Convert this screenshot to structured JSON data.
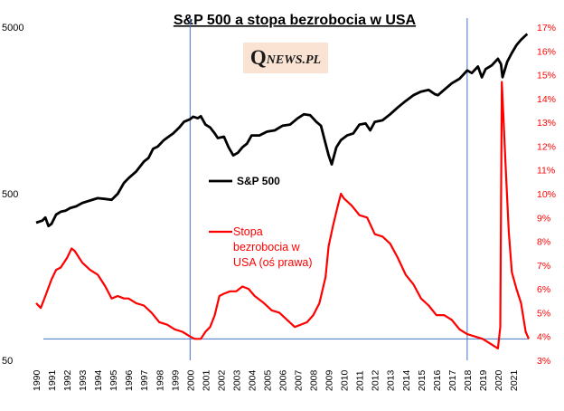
{
  "chart_data": {
    "type": "line",
    "title": "S&P 500 a stopa  bezrobocia  w USA",
    "watermark": {
      "q": "Q",
      "rest": "NEWS.PL"
    },
    "x_range": [
      1990,
      2022
    ],
    "x_ticks": [
      "1990",
      "1991",
      "1992",
      "1993",
      "1994",
      "1995",
      "1996",
      "1997",
      "1998",
      "1999",
      "2000",
      "2001",
      "2002",
      "2003",
      "2004",
      "2005",
      "2006",
      "2007",
      "2008",
      "2009",
      "2010",
      "2011",
      "2012",
      "2013",
      "2014",
      "2015",
      "2016",
      "2017",
      "2018",
      "2019",
      "2020",
      "2021"
    ],
    "y_left": {
      "scale": "log",
      "range": [
        50,
        5000
      ],
      "ticks": [
        {
          "value": 50,
          "label": "50"
        },
        {
          "value": 500,
          "label": "500"
        },
        {
          "value": 5000,
          "label": "5000"
        }
      ]
    },
    "y_right": {
      "scale": "linear",
      "range": [
        3,
        17
      ],
      "ticks": [
        "3%",
        "4%",
        "5%",
        "6%",
        "7%",
        "8%",
        "9%",
        "10%",
        "11%",
        "12%",
        "13%",
        "14%",
        "15%",
        "16%",
        "17%"
      ]
    },
    "vertical_markers": [
      2000.0,
      2018.0
    ],
    "horizontal_marker": {
      "axis": "right",
      "value": 3.9
    },
    "series": [
      {
        "name": "S&P 500",
        "axis": "left",
        "color": "#000000",
        "x": [
          1990.0,
          1990.4,
          1990.6,
          1990.8,
          1991.0,
          1991.3,
          1991.6,
          1991.9,
          1992.2,
          1992.6,
          1993.0,
          1993.5,
          1994.0,
          1994.5,
          1994.9,
          1995.3,
          1995.7,
          1996.0,
          1996.5,
          1997.0,
          1997.3,
          1997.6,
          1997.9,
          1998.3,
          1998.6,
          1998.9,
          1999.3,
          1999.6,
          2000.0,
          2000.2,
          2000.5,
          2000.7,
          2001.0,
          2001.3,
          2001.6,
          2001.8,
          2002.2,
          2002.5,
          2002.8,
          2003.1,
          2003.4,
          2003.7,
          2004.0,
          2004.5,
          2005.0,
          2005.5,
          2006.0,
          2006.5,
          2007.0,
          2007.4,
          2007.8,
          2008.2,
          2008.5,
          2008.8,
          2009.0,
          2009.2,
          2009.5,
          2009.8,
          2010.2,
          2010.6,
          2011.0,
          2011.4,
          2011.7,
          2012.0,
          2012.5,
          2013.0,
          2013.5,
          2014.0,
          2014.5,
          2015.0,
          2015.5,
          2015.9,
          2016.1,
          2016.5,
          2017.0,
          2017.5,
          2018.0,
          2018.3,
          2018.7,
          2018.95,
          2019.2,
          2019.6,
          2020.0,
          2020.2,
          2020.3,
          2020.6,
          2020.9,
          2021.2,
          2021.5,
          2021.9
        ],
        "y": [
          335,
          345,
          360,
          320,
          330,
          375,
          390,
          395,
          410,
          420,
          440,
          455,
          470,
          465,
          460,
          500,
          580,
          620,
          680,
          780,
          820,
          930,
          960,
          1050,
          1100,
          1150,
          1250,
          1350,
          1400,
          1450,
          1420,
          1460,
          1300,
          1250,
          1150,
          1080,
          1100,
          950,
          850,
          880,
          950,
          1000,
          1120,
          1120,
          1180,
          1200,
          1280,
          1300,
          1420,
          1500,
          1480,
          1350,
          1280,
          1000,
          850,
          750,
          950,
          1050,
          1120,
          1150,
          1300,
          1320,
          1200,
          1350,
          1380,
          1500,
          1650,
          1800,
          1950,
          2050,
          2100,
          1980,
          1950,
          2100,
          2300,
          2450,
          2750,
          2650,
          2900,
          2500,
          2800,
          2950,
          3230,
          3000,
          2500,
          3100,
          3500,
          3900,
          4200,
          4550
        ]
      },
      {
        "name": "Stopa bezrobocia w USA (oś prawa)",
        "legend_lines": [
          "Stopa",
          "bezrobocia w",
          "USA (oś prawa)"
        ],
        "axis": "right",
        "color": "#ff0000",
        "x": [
          1990.0,
          1990.3,
          1990.6,
          1991.0,
          1991.3,
          1991.6,
          1992.0,
          1992.3,
          1992.5,
          1992.8,
          1993.0,
          1993.5,
          1994.0,
          1994.5,
          1994.9,
          1995.3,
          1995.7,
          1996.0,
          1996.5,
          1997.0,
          1997.5,
          1998.0,
          1998.5,
          1999.0,
          1999.5,
          2000.0,
          2000.3,
          2000.7,
          2001.0,
          2001.3,
          2001.6,
          2001.9,
          2002.2,
          2002.6,
          2003.0,
          2003.4,
          2003.8,
          2004.2,
          2004.8,
          2005.3,
          2005.8,
          2006.3,
          2006.8,
          2007.2,
          2007.6,
          2008.0,
          2008.4,
          2008.8,
          2009.0,
          2009.3,
          2009.6,
          2009.8,
          2010.0,
          2010.5,
          2011.0,
          2011.5,
          2012.0,
          2012.5,
          2013.0,
          2013.5,
          2014.0,
          2014.5,
          2015.0,
          2015.5,
          2016.0,
          2016.5,
          2017.0,
          2017.5,
          2018.0,
          2018.5,
          2019.0,
          2019.5,
          2020.0,
          2020.15,
          2020.25,
          2020.35,
          2020.5,
          2020.7,
          2020.9,
          2021.2,
          2021.5,
          2021.8,
          2022.0
        ],
        "y": [
          5.4,
          5.2,
          5.7,
          6.4,
          6.8,
          6.9,
          7.3,
          7.7,
          7.6,
          7.3,
          7.1,
          6.8,
          6.6,
          6.1,
          5.6,
          5.7,
          5.6,
          5.6,
          5.4,
          5.3,
          5.0,
          4.6,
          4.5,
          4.3,
          4.2,
          4.0,
          3.9,
          3.9,
          4.2,
          4.4,
          4.9,
          5.7,
          5.8,
          5.9,
          5.9,
          6.1,
          6.0,
          5.7,
          5.4,
          5.1,
          5.0,
          4.7,
          4.4,
          4.5,
          4.6,
          4.9,
          5.4,
          6.5,
          7.8,
          8.7,
          9.5,
          10.0,
          9.8,
          9.5,
          9.1,
          9.0,
          8.3,
          8.2,
          7.9,
          7.3,
          6.6,
          6.2,
          5.6,
          5.3,
          4.9,
          4.9,
          4.7,
          4.3,
          4.1,
          4.0,
          3.9,
          3.7,
          3.5,
          4.4,
          14.7,
          13.3,
          11.1,
          8.4,
          6.7,
          6.0,
          5.4,
          4.2,
          3.9
        ]
      }
    ]
  }
}
